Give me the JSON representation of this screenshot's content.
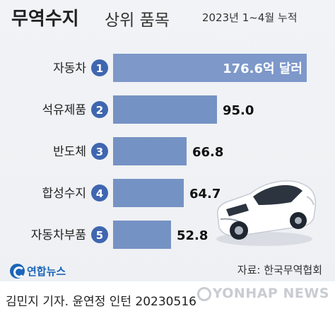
{
  "header": {
    "title_main": "무역수지",
    "title_sub": "상위 품목",
    "period": "2023년 1~4월 누적"
  },
  "chart_data": {
    "type": "bar",
    "orientation": "horizontal",
    "title": "무역수지 상위 품목",
    "subtitle": "2023년 1~4월 누적",
    "categories": [
      "자동차",
      "석유제품",
      "반도체",
      "합성수지",
      "자동차부품"
    ],
    "ranks": [
      "1",
      "2",
      "3",
      "4",
      "5"
    ],
    "values": [
      176.6,
      95.0,
      66.8,
      64.7,
      52.8
    ],
    "value_labels": [
      "176.6억 달러",
      "95.0",
      "66.8",
      "64.7",
      "52.8"
    ],
    "unit": "억 달러",
    "grid": false,
    "colors": {
      "bar": "#7592c4",
      "badge": "#3f66b0",
      "top_bar": "#7d98c9"
    }
  },
  "source": "자료: 한국무역협회",
  "logo": {
    "name": "연합뉴스",
    "icon": "yonhap-logo-icon"
  },
  "credit": "김민지 기자. 윤연정 인턴  20230516",
  "watermark": "YONHAP NEWS"
}
